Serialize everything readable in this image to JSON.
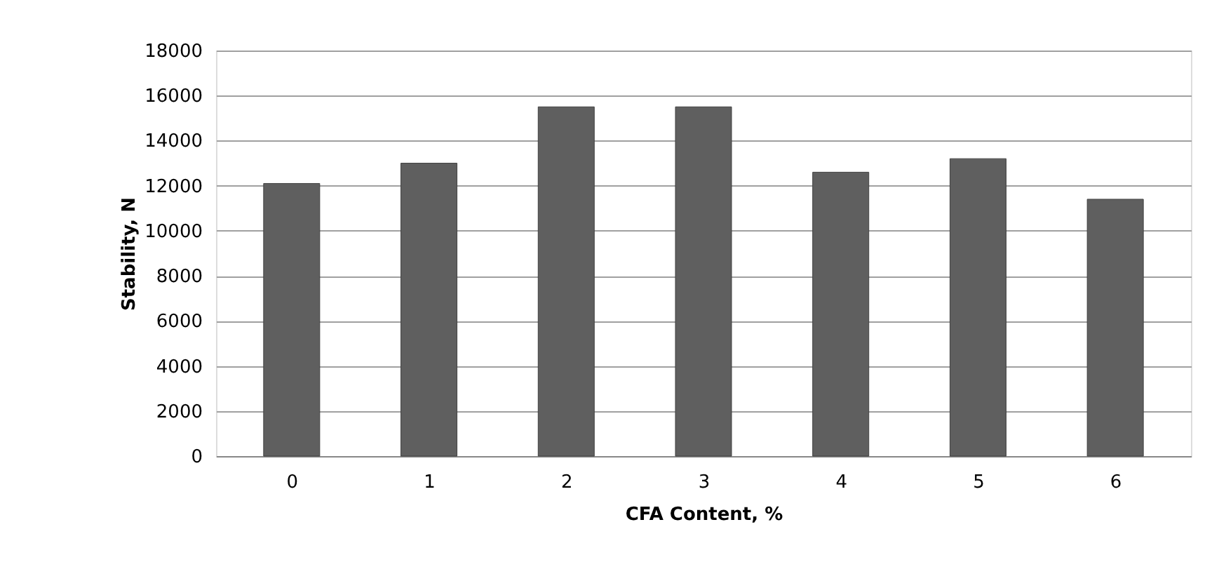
{
  "chart_data": {
    "type": "bar",
    "xlabel": "CFA Content, %",
    "ylabel": "Stability, N",
    "categories": [
      "0",
      "1",
      "2",
      "3",
      "4",
      "5",
      "6"
    ],
    "values": [
      12100,
      13000,
      15500,
      15500,
      12600,
      13200,
      11400
    ],
    "color": "#5f5f5f",
    "ylim": [
      0,
      18000
    ],
    "yticks": [
      0,
      2000,
      4000,
      6000,
      8000,
      10000,
      12000,
      14000,
      16000,
      18000
    ],
    "grid": "y"
  }
}
